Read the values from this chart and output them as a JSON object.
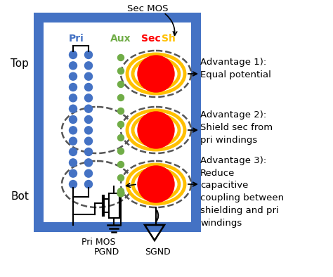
{
  "bg_color": "#ffffff",
  "blue_border_color": "#4472c4",
  "blue_dot_color": "#4472c4",
  "green_dot_color": "#70ad47",
  "red_circle_color": "#ff0000",
  "orange_ring_color": "#ffc000",
  "dashed_ellipse_color": "#555555",
  "pri_label_color": "#4472c4",
  "aux_label_color": "#70ad47",
  "sec_label_color": "#ff0000",
  "sh_label_color": "#ffc000",
  "labels": {
    "pri": "Pri",
    "aux": "Aux",
    "sec": "Sec",
    "sh": "Sh",
    "top": "Top",
    "bot": "Bot",
    "sec_mos": "Sec MOS",
    "pri_mos": "Pri MOS",
    "pgnd": "PGND",
    "sgnd": "SGND",
    "adv1_line1": "Advantage 1):",
    "adv1_line2": "Equal potential",
    "adv2_line1": "Advantage 2):",
    "adv2_line2": "Shield sec from",
    "adv2_line3": "pri windings",
    "adv3_line1": "Advantage 3):",
    "adv3_line2": "Reduce",
    "adv3_line3": "capacitive",
    "adv3_line4": "coupling between",
    "adv3_line5": "shielding and pri",
    "adv3_line6": "windings"
  }
}
